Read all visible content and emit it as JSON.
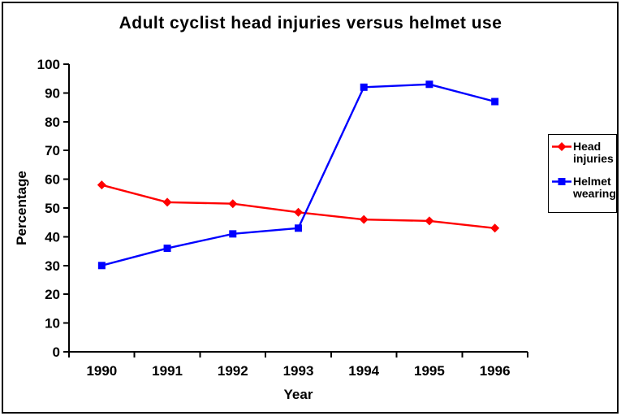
{
  "chart_data": {
    "type": "line",
    "title": "Adult cyclist head injuries versus helmet use",
    "xlabel": "Year",
    "ylabel": "Percentage",
    "categories": [
      "1990",
      "1991",
      "1992",
      "1993",
      "1994",
      "1995",
      "1996"
    ],
    "ylim": [
      0,
      100
    ],
    "yticks": [
      0,
      10,
      20,
      30,
      40,
      50,
      60,
      70,
      80,
      90,
      100
    ],
    "grid": false,
    "legend_position": "right",
    "background_color": "#FFFFFF",
    "axis_color": "#000000",
    "series": [
      {
        "name": "Head injuries",
        "legend_lines": [
          "Head",
          "injuries"
        ],
        "color": "#FF0000",
        "marker": "diamond",
        "values": [
          58,
          52,
          51.5,
          48.5,
          46,
          45.5,
          43
        ]
      },
      {
        "name": "Helmet wearing",
        "legend_lines": [
          "Helmet",
          "wearing"
        ],
        "color": "#0000FF",
        "marker": "square",
        "values": [
          30,
          36,
          41,
          43,
          92,
          93,
          87
        ]
      }
    ]
  }
}
